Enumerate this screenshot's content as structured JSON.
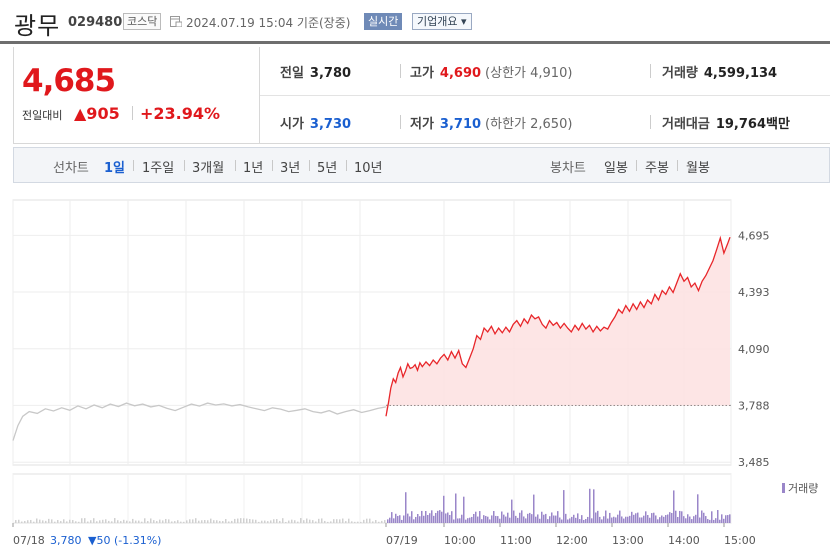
{
  "header": {
    "name": "광무",
    "code": "029480",
    "market": "코스닥",
    "datetime": "2024.07.19 15:04 기준(장중)",
    "realtime": "실시간",
    "company_info": "기업개요 ▾"
  },
  "price": {
    "current": "4,685",
    "change_label": "전일대비",
    "change_amount": "▲905",
    "change_percent": "+23.94%"
  },
  "stats": {
    "prev_close": {
      "label": "전일",
      "value": "3,780"
    },
    "high": {
      "label": "고가",
      "value": "4,690",
      "sub": "(상한가 4,910)"
    },
    "volume": {
      "label": "거래량",
      "value": "4,599,134"
    },
    "open": {
      "label": "시가",
      "value": "3,730"
    },
    "low": {
      "label": "저가",
      "value": "3,710",
      "sub": "(하한가 2,650)"
    },
    "amount": {
      "label": "거래대금",
      "value": "19,764",
      "unit": "백만"
    }
  },
  "toolbar": {
    "line_label": "선차트",
    "line_periods": [
      "1일",
      "1주일",
      "3개월",
      "1년",
      "3년",
      "5년",
      "10년"
    ],
    "active_period": "1일",
    "candle_label": "봉차트",
    "candle_periods": [
      "일봉",
      "주봉",
      "월봉"
    ]
  },
  "chart_data": {
    "type": "line",
    "prev_day_label": "07/18",
    "prev_day_close": "3,780",
    "prev_day_change": "▼50 (-1.31%)",
    "reference_line": 3788,
    "y_ticks": [
      4695,
      4393,
      4090,
      3788,
      3485
    ],
    "y_tick_labels": [
      "4,695",
      "4,393",
      "4,090",
      "3,788",
      "3,485"
    ],
    "ylim": [
      3470,
      4750
    ],
    "x_tick_labels": [
      "07/18",
      "07/19",
      "10:00",
      "11:00",
      "12:00",
      "13:00",
      "14:00",
      "15:00"
    ],
    "volume_legend": "거래량",
    "colors": {
      "prev_day": "#c8c8c8",
      "today": "#e8262a",
      "today_fill": "#fde0e0",
      "volume": "#9a86c9",
      "volume_prev": "#d0d0d0"
    },
    "series": [
      {
        "day": "07/18",
        "points": [
          [
            0,
            3600
          ],
          [
            3,
            3680
          ],
          [
            6,
            3730
          ],
          [
            10,
            3755
          ],
          [
            15,
            3745
          ],
          [
            20,
            3770
          ],
          [
            25,
            3758
          ],
          [
            30,
            3775
          ],
          [
            35,
            3762
          ],
          [
            40,
            3785
          ],
          [
            45,
            3770
          ],
          [
            50,
            3790
          ],
          [
            55,
            3775
          ],
          [
            60,
            3795
          ],
          [
            65,
            3782
          ],
          [
            70,
            3800
          ],
          [
            75,
            3786
          ],
          [
            80,
            3795
          ],
          [
            85,
            3780
          ],
          [
            90,
            3788
          ],
          [
            95,
            3772
          ],
          [
            100,
            3760
          ],
          [
            105,
            3778
          ],
          [
            110,
            3795
          ],
          [
            115,
            3784
          ],
          [
            120,
            3800
          ],
          [
            125,
            3790
          ],
          [
            130,
            3796
          ],
          [
            135,
            3785
          ],
          [
            140,
            3792
          ],
          [
            145,
            3780
          ],
          [
            150,
            3770
          ],
          [
            155,
            3760
          ],
          [
            160,
            3775
          ],
          [
            165,
            3768
          ],
          [
            170,
            3755
          ],
          [
            175,
            3762
          ],
          [
            180,
            3770
          ],
          [
            185,
            3755
          ],
          [
            190,
            3748
          ],
          [
            195,
            3760
          ],
          [
            200,
            3742
          ],
          [
            205,
            3755
          ],
          [
            210,
            3765
          ],
          [
            215,
            3750
          ],
          [
            220,
            3760
          ],
          [
            225,
            3772
          ],
          [
            230,
            3780
          ]
        ]
      },
      {
        "day": "07/19",
        "points": [
          [
            0,
            3730
          ],
          [
            2,
            3800
          ],
          [
            4,
            3880
          ],
          [
            6,
            3930
          ],
          [
            8,
            3910
          ],
          [
            10,
            3960
          ],
          [
            12,
            3990
          ],
          [
            14,
            3940
          ],
          [
            16,
            3970
          ],
          [
            18,
            4010
          ],
          [
            20,
            3985
          ],
          [
            22,
            3990
          ],
          [
            24,
            4005
          ],
          [
            26,
            3975
          ],
          [
            28,
            4015
          ],
          [
            30,
            3995
          ],
          [
            33,
            4020
          ],
          [
            36,
            4000
          ],
          [
            39,
            4030
          ],
          [
            42,
            4010
          ],
          [
            45,
            4040
          ],
          [
            48,
            4060
          ],
          [
            51,
            4030
          ],
          [
            54,
            4075
          ],
          [
            57,
            4040
          ],
          [
            60,
            4080
          ],
          [
            63,
            4010
          ],
          [
            66,
            3990
          ],
          [
            69,
            4040
          ],
          [
            72,
            4090
          ],
          [
            75,
            4160
          ],
          [
            78,
            4140
          ],
          [
            81,
            4200
          ],
          [
            84,
            4180
          ],
          [
            87,
            4210
          ],
          [
            90,
            4170
          ],
          [
            93,
            4200
          ],
          [
            96,
            4175
          ],
          [
            99,
            4205
          ],
          [
            102,
            4180
          ],
          [
            105,
            4220
          ],
          [
            108,
            4240
          ],
          [
            111,
            4210
          ],
          [
            114,
            4250
          ],
          [
            117,
            4225
          ],
          [
            120,
            4270
          ],
          [
            123,
            4250
          ],
          [
            126,
            4260
          ],
          [
            129,
            4220
          ],
          [
            132,
            4200
          ],
          [
            135,
            4240
          ],
          [
            138,
            4215
          ],
          [
            141,
            4230
          ],
          [
            144,
            4200
          ],
          [
            147,
            4225
          ],
          [
            150,
            4200
          ],
          [
            153,
            4180
          ],
          [
            156,
            4215
          ],
          [
            159,
            4190
          ],
          [
            162,
            4225
          ],
          [
            165,
            4195
          ],
          [
            168,
            4215
          ],
          [
            171,
            4180
          ],
          [
            174,
            4210
          ],
          [
            177,
            4185
          ],
          [
            180,
            4205
          ],
          [
            183,
            4195
          ],
          [
            186,
            4230
          ],
          [
            189,
            4260
          ],
          [
            192,
            4300
          ],
          [
            195,
            4280
          ],
          [
            198,
            4320
          ],
          [
            201,
            4290
          ],
          [
            204,
            4330
          ],
          [
            207,
            4300
          ],
          [
            210,
            4340
          ],
          [
            213,
            4310
          ],
          [
            216,
            4350
          ],
          [
            219,
            4330
          ],
          [
            222,
            4380
          ],
          [
            225,
            4350
          ],
          [
            228,
            4400
          ],
          [
            231,
            4380
          ],
          [
            234,
            4420
          ],
          [
            237,
            4390
          ],
          [
            240,
            4440
          ],
          [
            243,
            4490
          ],
          [
            246,
            4450
          ],
          [
            249,
            4470
          ],
          [
            252,
            4420
          ],
          [
            255,
            4440
          ],
          [
            258,
            4400
          ],
          [
            261,
            4450
          ],
          [
            264,
            4480
          ],
          [
            267,
            4520
          ],
          [
            270,
            4560
          ],
          [
            273,
            4620
          ],
          [
            276,
            4680
          ],
          [
            279,
            4600
          ],
          [
            282,
            4650
          ],
          [
            284,
            4685
          ]
        ]
      }
    ]
  }
}
